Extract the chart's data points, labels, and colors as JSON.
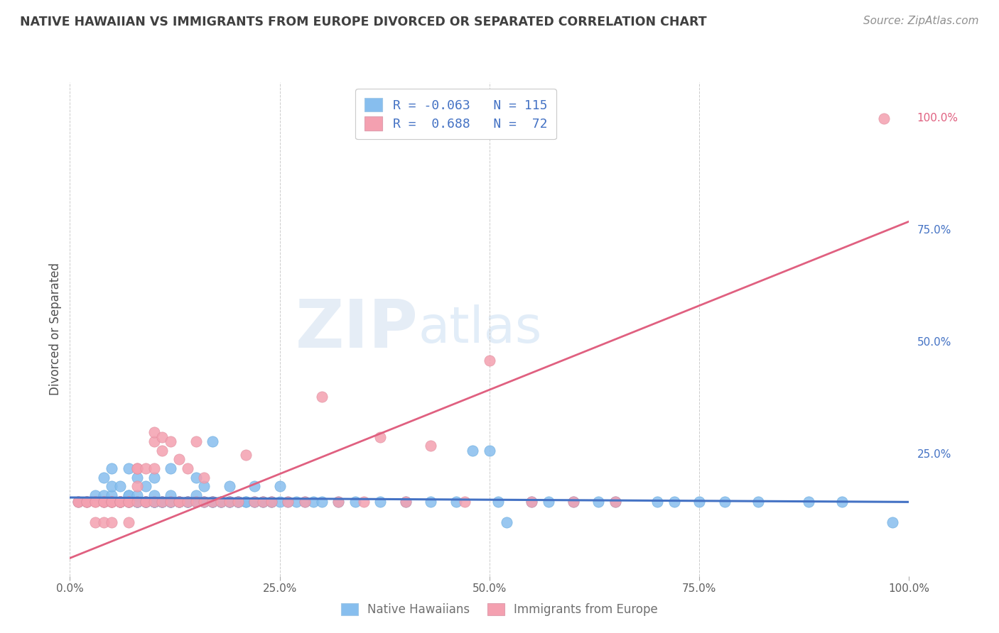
{
  "title": "NATIVE HAWAIIAN VS IMMIGRANTS FROM EUROPE DIVORCED OR SEPARATED CORRELATION CHART",
  "source": "Source: ZipAtlas.com",
  "ylabel": "Divorced or Separated",
  "watermark_zip": "ZIP",
  "watermark_atlas": "atlas",
  "legend_blue_R": "R = -0.063",
  "legend_blue_N": "N = 115",
  "legend_pink_R": "R =  0.688",
  "legend_pink_N": "N =  72",
  "blue_label": "Native Hawaiians",
  "pink_label": "Immigrants from Europe",
  "ytick_labels": [
    "100.0%",
    "75.0%",
    "50.0%",
    "25.0%"
  ],
  "ytick_positions": [
    1.0,
    0.75,
    0.5,
    0.25
  ],
  "ytick_colors": [
    "#E06080",
    "#4472C4",
    "#4472C4",
    "#4472C4"
  ],
  "blue_color": "#87BEEE",
  "pink_color": "#F4A0B0",
  "blue_line_color": "#4472C4",
  "pink_line_color": "#E06080",
  "title_color": "#404040",
  "source_color": "#909090",
  "legend_text_color": "#4472C4",
  "grid_color": "#CCCCCC",
  "background_color": "#FFFFFF",
  "blue_line_x0": 0.0,
  "blue_line_y0": 0.155,
  "blue_line_x1": 1.0,
  "blue_line_y1": 0.145,
  "pink_line_x0": 0.0,
  "pink_line_y0": 0.02,
  "pink_line_x1": 1.0,
  "pink_line_y1": 0.77,
  "blue_scatter_x": [
    0.01,
    0.02,
    0.03,
    0.04,
    0.04,
    0.04,
    0.05,
    0.05,
    0.05,
    0.05,
    0.06,
    0.06,
    0.06,
    0.06,
    0.07,
    0.07,
    0.07,
    0.07,
    0.07,
    0.07,
    0.08,
    0.08,
    0.08,
    0.08,
    0.08,
    0.08,
    0.09,
    0.09,
    0.09,
    0.09,
    0.09,
    0.09,
    0.09,
    0.1,
    0.1,
    0.1,
    0.1,
    0.1,
    0.1,
    0.1,
    0.11,
    0.11,
    0.11,
    0.11,
    0.12,
    0.12,
    0.12,
    0.12,
    0.12,
    0.12,
    0.13,
    0.13,
    0.13,
    0.14,
    0.14,
    0.14,
    0.14,
    0.15,
    0.15,
    0.15,
    0.16,
    0.16,
    0.16,
    0.17,
    0.17,
    0.17,
    0.17,
    0.18,
    0.18,
    0.18,
    0.19,
    0.19,
    0.19,
    0.19,
    0.2,
    0.2,
    0.2,
    0.21,
    0.21,
    0.22,
    0.22,
    0.22,
    0.23,
    0.23,
    0.24,
    0.24,
    0.25,
    0.25,
    0.26,
    0.27,
    0.28,
    0.29,
    0.3,
    0.32,
    0.34,
    0.37,
    0.4,
    0.43,
    0.46,
    0.48,
    0.5,
    0.51,
    0.52,
    0.55,
    0.57,
    0.6,
    0.63,
    0.65,
    0.7,
    0.72,
    0.75,
    0.78,
    0.82,
    0.88,
    0.92,
    0.98
  ],
  "blue_scatter_y": [
    0.145,
    0.145,
    0.16,
    0.145,
    0.16,
    0.2,
    0.145,
    0.16,
    0.18,
    0.22,
    0.145,
    0.145,
    0.145,
    0.18,
    0.145,
    0.145,
    0.145,
    0.16,
    0.16,
    0.22,
    0.145,
    0.145,
    0.145,
    0.145,
    0.16,
    0.2,
    0.145,
    0.145,
    0.145,
    0.145,
    0.145,
    0.145,
    0.18,
    0.145,
    0.145,
    0.145,
    0.145,
    0.145,
    0.16,
    0.2,
    0.145,
    0.145,
    0.145,
    0.145,
    0.145,
    0.145,
    0.145,
    0.145,
    0.16,
    0.22,
    0.145,
    0.145,
    0.145,
    0.145,
    0.145,
    0.145,
    0.145,
    0.145,
    0.16,
    0.2,
    0.145,
    0.145,
    0.18,
    0.145,
    0.145,
    0.145,
    0.28,
    0.145,
    0.145,
    0.145,
    0.145,
    0.145,
    0.145,
    0.18,
    0.145,
    0.145,
    0.145,
    0.145,
    0.145,
    0.145,
    0.145,
    0.18,
    0.145,
    0.145,
    0.145,
    0.145,
    0.145,
    0.18,
    0.145,
    0.145,
    0.145,
    0.145,
    0.145,
    0.145,
    0.145,
    0.145,
    0.145,
    0.145,
    0.145,
    0.26,
    0.26,
    0.145,
    0.1,
    0.145,
    0.145,
    0.145,
    0.145,
    0.145,
    0.145,
    0.145,
    0.145,
    0.145,
    0.145,
    0.145,
    0.145,
    0.1
  ],
  "pink_scatter_x": [
    0.01,
    0.01,
    0.02,
    0.02,
    0.02,
    0.03,
    0.03,
    0.03,
    0.04,
    0.04,
    0.04,
    0.04,
    0.05,
    0.05,
    0.05,
    0.05,
    0.05,
    0.06,
    0.06,
    0.06,
    0.06,
    0.07,
    0.07,
    0.07,
    0.07,
    0.08,
    0.08,
    0.08,
    0.08,
    0.09,
    0.09,
    0.09,
    0.1,
    0.1,
    0.1,
    0.1,
    0.11,
    0.11,
    0.11,
    0.12,
    0.12,
    0.13,
    0.13,
    0.13,
    0.14,
    0.14,
    0.15,
    0.15,
    0.16,
    0.16,
    0.17,
    0.18,
    0.19,
    0.2,
    0.21,
    0.22,
    0.23,
    0.24,
    0.26,
    0.28,
    0.3,
    0.32,
    0.35,
    0.37,
    0.4,
    0.43,
    0.47,
    0.5,
    0.55,
    0.6,
    0.65,
    0.97
  ],
  "pink_scatter_y": [
    0.145,
    0.145,
    0.145,
    0.145,
    0.145,
    0.145,
    0.145,
    0.1,
    0.145,
    0.1,
    0.145,
    0.145,
    0.145,
    0.145,
    0.145,
    0.1,
    0.145,
    0.145,
    0.145,
    0.145,
    0.145,
    0.145,
    0.145,
    0.1,
    0.145,
    0.18,
    0.22,
    0.145,
    0.22,
    0.145,
    0.22,
    0.145,
    0.28,
    0.3,
    0.145,
    0.22,
    0.145,
    0.26,
    0.29,
    0.145,
    0.28,
    0.145,
    0.24,
    0.145,
    0.145,
    0.22,
    0.145,
    0.28,
    0.145,
    0.2,
    0.145,
    0.145,
    0.145,
    0.145,
    0.25,
    0.145,
    0.145,
    0.145,
    0.145,
    0.145,
    0.38,
    0.145,
    0.145,
    0.29,
    0.145,
    0.27,
    0.145,
    0.46,
    0.145,
    0.145,
    0.145,
    1.0
  ],
  "xlim": [
    0.0,
    1.0
  ],
  "ylim": [
    -0.02,
    1.08
  ]
}
